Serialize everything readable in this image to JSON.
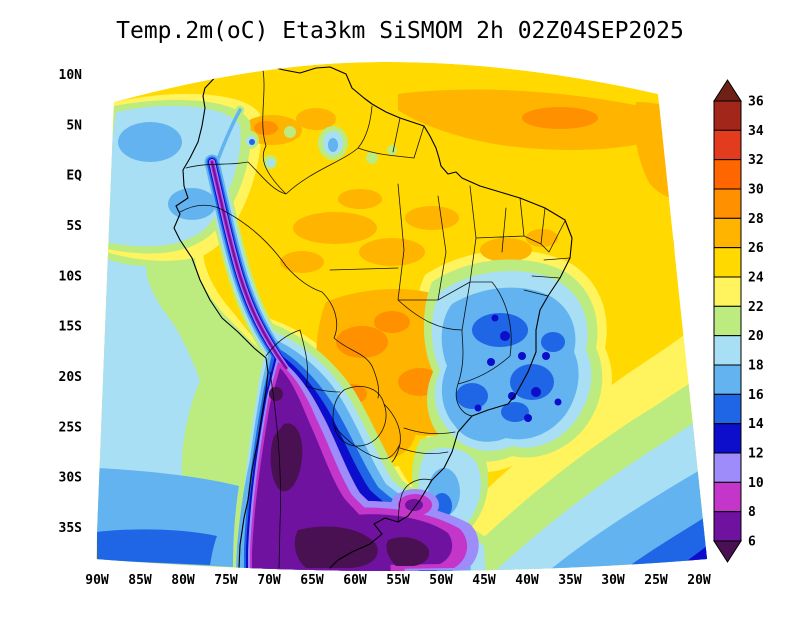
{
  "title": "Temp.2m(oC) Eta3km SiSMOM 2h 02Z04SEP2025",
  "background_color": "#FFFFFF",
  "axes": {
    "lat_labels": [
      "10N",
      "5N",
      "EQ",
      "5S",
      "10S",
      "15S",
      "20S",
      "25S",
      "30S",
      "35S"
    ],
    "lon_labels": [
      "90W",
      "85W",
      "80W",
      "75W",
      "70W",
      "65W",
      "60W",
      "55W",
      "50W",
      "45W",
      "40W",
      "35W",
      "30W",
      "25W",
      "20W"
    ]
  },
  "legend": {
    "tick_labels": [
      "36",
      "34",
      "32",
      "30",
      "28",
      "26",
      "24",
      "22",
      "20",
      "18",
      "16",
      "14",
      "12",
      "10",
      "8",
      "6"
    ],
    "levels": [
      {
        "id": "gt36",
        "color": "#6E2014"
      },
      {
        "id": "34_36",
        "color": "#A3261A"
      },
      {
        "id": "32_34",
        "color": "#E23B1E"
      },
      {
        "id": "30_32",
        "color": "#FF6600"
      },
      {
        "id": "28_30",
        "color": "#FF9000"
      },
      {
        "id": "26_28",
        "color": "#FFB400"
      },
      {
        "id": "24_26",
        "color": "#FFD900"
      },
      {
        "id": "22_24",
        "color": "#FFF35E"
      },
      {
        "id": "20_22",
        "color": "#BCEC80"
      },
      {
        "id": "18_20",
        "color": "#A8DFF4"
      },
      {
        "id": "16_18",
        "color": "#62B3EF"
      },
      {
        "id": "14_16",
        "color": "#1F66E6"
      },
      {
        "id": "12_14",
        "color": "#0D0DCC"
      },
      {
        "id": "10_12",
        "color": "#9D8CFA"
      },
      {
        "id": "8_10",
        "color": "#C435CA"
      },
      {
        "id": "6_8",
        "color": "#7012A0"
      },
      {
        "id": "lt6",
        "color": "#4A1152"
      }
    ]
  },
  "map": {
    "line_color": "#000000"
  }
}
